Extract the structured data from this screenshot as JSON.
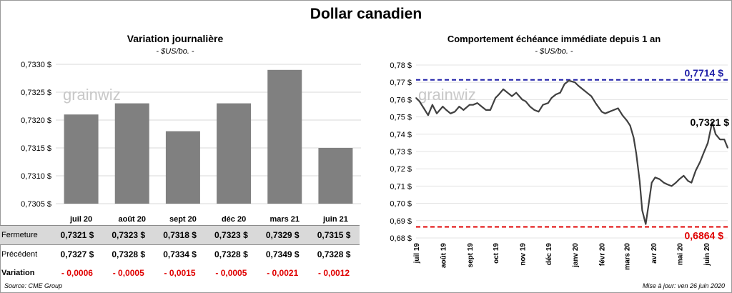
{
  "title": "Dollar canadien",
  "left": {
    "title": "Variation  journalière",
    "unit": "- $US/bo. -"
  },
  "right": {
    "title": "Comportement échéance immédiate depuis 1 an",
    "unit": "- $US/bo. -"
  },
  "watermark": "grainwiz",
  "table": {
    "rows": [
      {
        "label": "Fermeture",
        "values": [
          "0,7321  $",
          "0,7323  $",
          "0,7318  $",
          "0,7323  $",
          "0,7329  $",
          "0,7315  $"
        ]
      },
      {
        "label": "Précédent",
        "values": [
          "0,7327  $",
          "0,7328  $",
          "0,7334  $",
          "0,7328  $",
          "0,7349  $",
          "0,7328  $"
        ]
      },
      {
        "label": "Variation",
        "values": [
          "- 0,0006",
          "- 0,0005",
          "- 0,0015",
          "- 0,0005",
          "- 0,0021",
          "- 0,0012"
        ]
      }
    ]
  },
  "source": "Source: CME Group",
  "updated": "Mise à jour: ven 26 juin 2020",
  "colors": {
    "bar": "#808080",
    "line": "#404040",
    "max": "#1f1fa8",
    "min": "#e00000"
  },
  "chart_data": [
    {
      "type": "bar",
      "title": "Variation  journalière",
      "subtitle": "- $US/bo. -",
      "categories": [
        "juil 20",
        "août 20",
        "sept 20",
        "déc 20",
        "mars 21",
        "juin 21"
      ],
      "values": [
        0.7321,
        0.7323,
        0.7318,
        0.7323,
        0.7329,
        0.7315
      ],
      "ylim": [
        0.7305,
        0.733
      ],
      "yticks": [
        "0,7305 $",
        "0,7310 $",
        "0,7315 $",
        "0,7320 $",
        "0,7325 $",
        "0,7330 $"
      ],
      "grid": true
    },
    {
      "type": "line",
      "title": "Comportement échéance immédiate depuis 1 an",
      "subtitle": "- $US/bo. -",
      "x_ticks": [
        "juil 19",
        "août 19",
        "sept 19",
        "oct 19",
        "nov 19",
        "déc 19",
        "janv 20",
        "févr 20",
        "mars 20",
        "avr 20",
        "mai 20",
        "juin 20"
      ],
      "yticks": [
        "0,68 $",
        "0,69 $",
        "0,70 $",
        "0,71 $",
        "0,72 $",
        "0,73 $",
        "0,74 $",
        "0,75 $",
        "0,76 $",
        "0,77 $",
        "0,78 $"
      ],
      "ylim": [
        0.68,
        0.78
      ],
      "x": [
        "2019-07-01",
        "2019-07-05",
        "2019-07-10",
        "2019-07-15",
        "2019-07-20",
        "2019-07-25",
        "2019-08-01",
        "2019-08-05",
        "2019-08-10",
        "2019-08-15",
        "2019-08-20",
        "2019-08-25",
        "2019-09-01",
        "2019-09-05",
        "2019-09-10",
        "2019-09-15",
        "2019-09-20",
        "2019-09-25",
        "2019-10-01",
        "2019-10-05",
        "2019-10-10",
        "2019-10-15",
        "2019-10-20",
        "2019-10-25",
        "2019-11-01",
        "2019-11-05",
        "2019-11-10",
        "2019-11-15",
        "2019-11-20",
        "2019-11-25",
        "2019-12-01",
        "2019-12-05",
        "2019-12-10",
        "2019-12-15",
        "2019-12-20",
        "2019-12-25",
        "2020-01-01",
        "2020-01-05",
        "2020-01-10",
        "2020-01-15",
        "2020-01-20",
        "2020-01-25",
        "2020-02-01",
        "2020-02-05",
        "2020-02-10",
        "2020-02-15",
        "2020-02-20",
        "2020-02-25",
        "2020-03-01",
        "2020-03-05",
        "2020-03-09",
        "2020-03-12",
        "2020-03-16",
        "2020-03-19",
        "2020-03-23",
        "2020-03-26",
        "2020-03-30",
        "2020-04-03",
        "2020-04-08",
        "2020-04-13",
        "2020-04-17",
        "2020-04-22",
        "2020-04-27",
        "2020-05-01",
        "2020-05-06",
        "2020-05-11",
        "2020-05-15",
        "2020-05-20",
        "2020-05-25",
        "2020-05-29",
        "2020-06-03",
        "2020-06-08",
        "2020-06-12",
        "2020-06-17",
        "2020-06-22",
        "2020-06-26"
      ],
      "series": [
        {
          "values": [
            0.761,
            0.759,
            0.755,
            0.751,
            0.757,
            0.752,
            0.756,
            0.754,
            0.752,
            0.753,
            0.756,
            0.754,
            0.757,
            0.757,
            0.758,
            0.756,
            0.754,
            0.754,
            0.761,
            0.763,
            0.766,
            0.764,
            0.762,
            0.764,
            0.76,
            0.759,
            0.756,
            0.754,
            0.753,
            0.757,
            0.758,
            0.761,
            0.763,
            0.764,
            0.769,
            0.771,
            0.77,
            0.768,
            0.766,
            0.764,
            0.762,
            0.758,
            0.753,
            0.752,
            0.753,
            0.754,
            0.755,
            0.751,
            0.748,
            0.745,
            0.738,
            0.729,
            0.713,
            0.696,
            0.688,
            0.698,
            0.712,
            0.715,
            0.714,
            0.712,
            0.711,
            0.71,
            0.712,
            0.714,
            0.716,
            0.713,
            0.712,
            0.719,
            0.724,
            0.729,
            0.735,
            0.747,
            0.74,
            0.737,
            0.737,
            0.7321
          ]
        }
      ],
      "reference_lines": [
        {
          "value": 0.7714,
          "label": "0,7714 $",
          "color": "#1f1fa8"
        },
        {
          "value": 0.6864,
          "label": "0,6864 $",
          "color": "#e00000"
        }
      ],
      "last_label": "0,7321 $",
      "grid": true
    }
  ]
}
